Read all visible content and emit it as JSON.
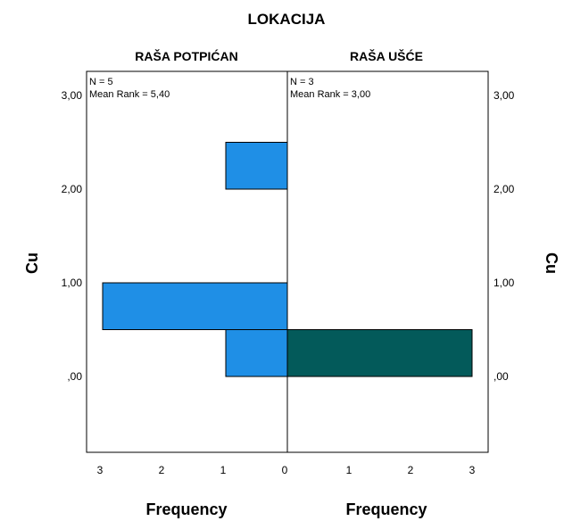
{
  "chart_data": {
    "type": "bar",
    "orientation": "horizontal",
    "title": "LOKACIJA",
    "ylabel": "Cu",
    "xlabel": "Frequency",
    "y_ticks": [
      "3,00",
      "2,00",
      "1,00",
      ",00"
    ],
    "x_ticks_left": [
      "3",
      "2",
      "1",
      "0"
    ],
    "x_ticks_right": [
      "0",
      "1",
      "2",
      "3"
    ],
    "panels": [
      {
        "name": "RAŠA POTPIĆAN",
        "n_label": "N = 5",
        "mean_rank_label": "Mean Rank = 5,40",
        "color": "#1f8fe6",
        "bins": [
          {
            "bin": "0,00-0,50",
            "frequency": 1
          },
          {
            "bin": "0,50-1,00",
            "frequency": 3
          },
          {
            "bin": "2,00-2,50",
            "frequency": 1
          }
        ]
      },
      {
        "name": "RAŠA UŠĆE",
        "n_label": "N = 3",
        "mean_rank_label": "Mean Rank = 3,00",
        "color": "#035a5a",
        "bins": [
          {
            "bin": "0,00-0,50",
            "frequency": 3
          }
        ]
      }
    ]
  }
}
